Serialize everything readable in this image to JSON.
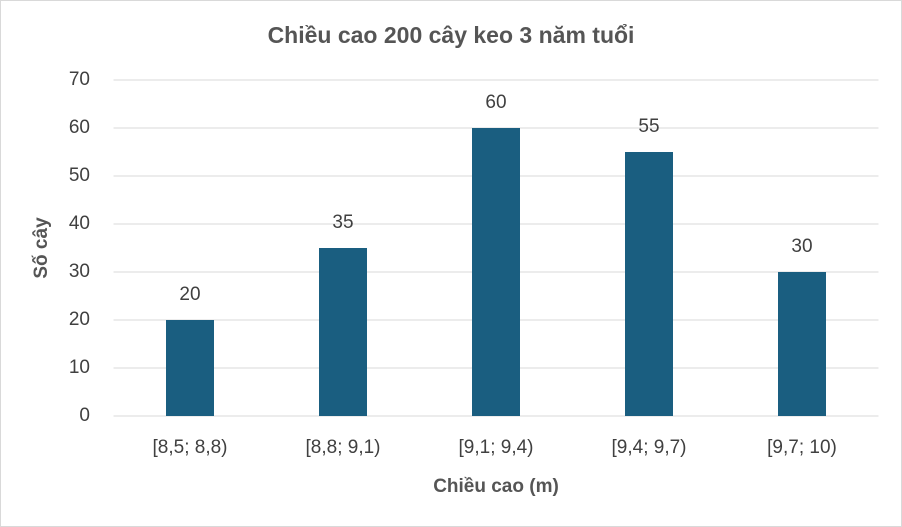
{
  "chart_data": {
    "type": "bar",
    "title": "Chiều cao 200 cây keo 3 năm tuổi",
    "x_label": "Chiều cao (m)",
    "y_label": "Số cây",
    "categories": [
      "[8,5; 8,8)",
      "[8,8; 9,1)",
      "[9,1; 9,4)",
      "[9,4; 9,7)",
      "[9,7; 10)"
    ],
    "values": [
      20,
      35,
      60,
      55,
      30
    ],
    "color": "#1a5e80",
    "ylim": [
      0,
      70
    ],
    "yticks": [
      0,
      10,
      20,
      30,
      40,
      50,
      60,
      70
    ],
    "grid": true
  }
}
